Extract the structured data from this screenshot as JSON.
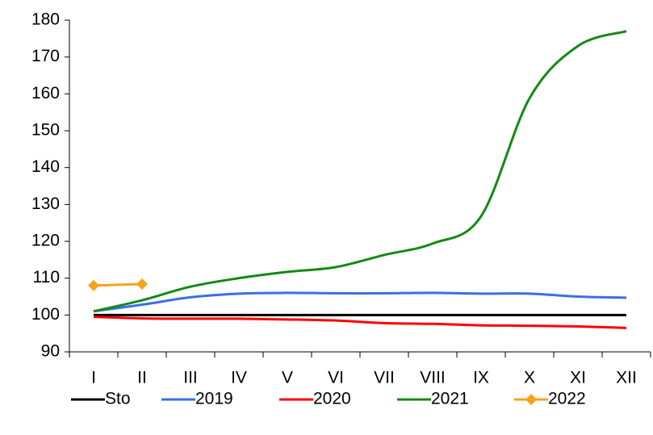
{
  "chart_data": {
    "type": "line",
    "categories": [
      "I",
      "II",
      "III",
      "IV",
      "V",
      "VI",
      "VII",
      "VIII",
      "IX",
      "X",
      "XI",
      "XII"
    ],
    "series": [
      {
        "name": "Sto",
        "color": "#000000",
        "values": [
          100,
          100,
          100,
          100,
          100,
          100,
          100,
          100,
          100,
          100,
          100,
          100
        ]
      },
      {
        "name": "2019",
        "color": "#3c6ee6",
        "values": [
          101,
          102.8,
          104.8,
          105.8,
          106,
          105.9,
          105.9,
          106,
          105.8,
          105.8,
          105,
          104.7
        ]
      },
      {
        "name": "2020",
        "color": "#ff0000",
        "values": [
          99.5,
          99.1,
          99,
          99,
          98.8,
          98.5,
          97.8,
          97.6,
          97.2,
          97.1,
          96.9,
          96.5
        ]
      },
      {
        "name": "2021",
        "color": "#138a13",
        "values": [
          101,
          104,
          107.7,
          110,
          111.7,
          113,
          116.3,
          119.4,
          126.8,
          158.8,
          173,
          177
        ]
      },
      {
        "name": "2022",
        "color": "#f7a21b",
        "marker": "diamond",
        "values": [
          108,
          108.4,
          null,
          null,
          null,
          null,
          null,
          null,
          null,
          null,
          null,
          null
        ]
      }
    ],
    "ylim": [
      90,
      180
    ],
    "yticks": [
      90,
      100,
      110,
      120,
      130,
      140,
      150,
      160,
      170,
      180
    ],
    "legend": "bottom"
  }
}
